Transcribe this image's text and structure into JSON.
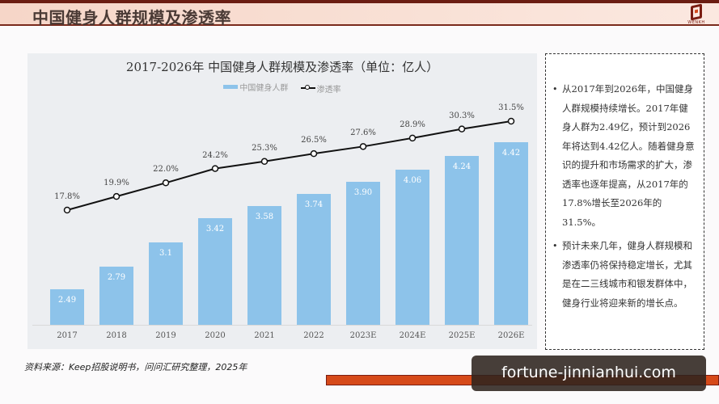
{
  "header": {
    "title": "中国健身人群规模及渗透率",
    "logo_text": "WENKH"
  },
  "chart": {
    "title": "2017-2026年 中国健身人群规模及渗透率（单位：亿人）",
    "legend": [
      "中国健身人群",
      "渗透率"
    ]
  },
  "chart_data": {
    "type": "bar",
    "title": "2017-2026年 中国健身人群规模及渗透率（单位：亿人）",
    "categories": [
      "2017",
      "2018",
      "2019",
      "2020",
      "2021",
      "2022",
      "2023E",
      "2024E",
      "2025E",
      "2026E"
    ],
    "series": [
      {
        "name": "中国健身人群",
        "type": "bar",
        "values": [
          2.49,
          2.79,
          3.1,
          3.42,
          3.58,
          3.74,
          3.9,
          4.06,
          4.24,
          4.42
        ],
        "labels": [
          "2.49",
          "2.79",
          "3.1",
          "3.42",
          "3.58",
          "3.74",
          "3.90",
          "4.06",
          "4.24",
          "4.42"
        ],
        "color": "#8dc3ea"
      },
      {
        "name": "渗透率",
        "type": "line",
        "values": [
          17.8,
          19.9,
          22.0,
          24.2,
          25.3,
          26.5,
          27.6,
          28.9,
          30.3,
          31.5
        ],
        "labels": [
          "17.8%",
          "19.9%",
          "22.0%",
          "24.2%",
          "25.3%",
          "26.5%",
          "27.6%",
          "28.9%",
          "30.3%",
          "31.5%"
        ],
        "color": "#111111",
        "unit": "%"
      }
    ],
    "xlabel": "",
    "ylabel": "",
    "grid": false,
    "legend_position": "top"
  },
  "notes": [
    "从2017年到2026年，中国健身人群规模持续增长。2017年健身人群为2.49亿，预计到2026年将达到4.42亿人。随着健身意识的提升和市场需求的扩大，渗透率也逐年提高，从2017年的17.8%增长至2026年的31.5%。",
    "预计未来几年，健身人群规模和渗透率仍将保持稳定增长，尤其是在二三线城市和银发群体中，健身行业将迎来新的增长点。"
  ],
  "note_bullet": "•",
  "source": "资料来源：Keep招股说明书，问问汇研究整理，2025年",
  "watermark": "fortune-jinnianhui.com"
}
